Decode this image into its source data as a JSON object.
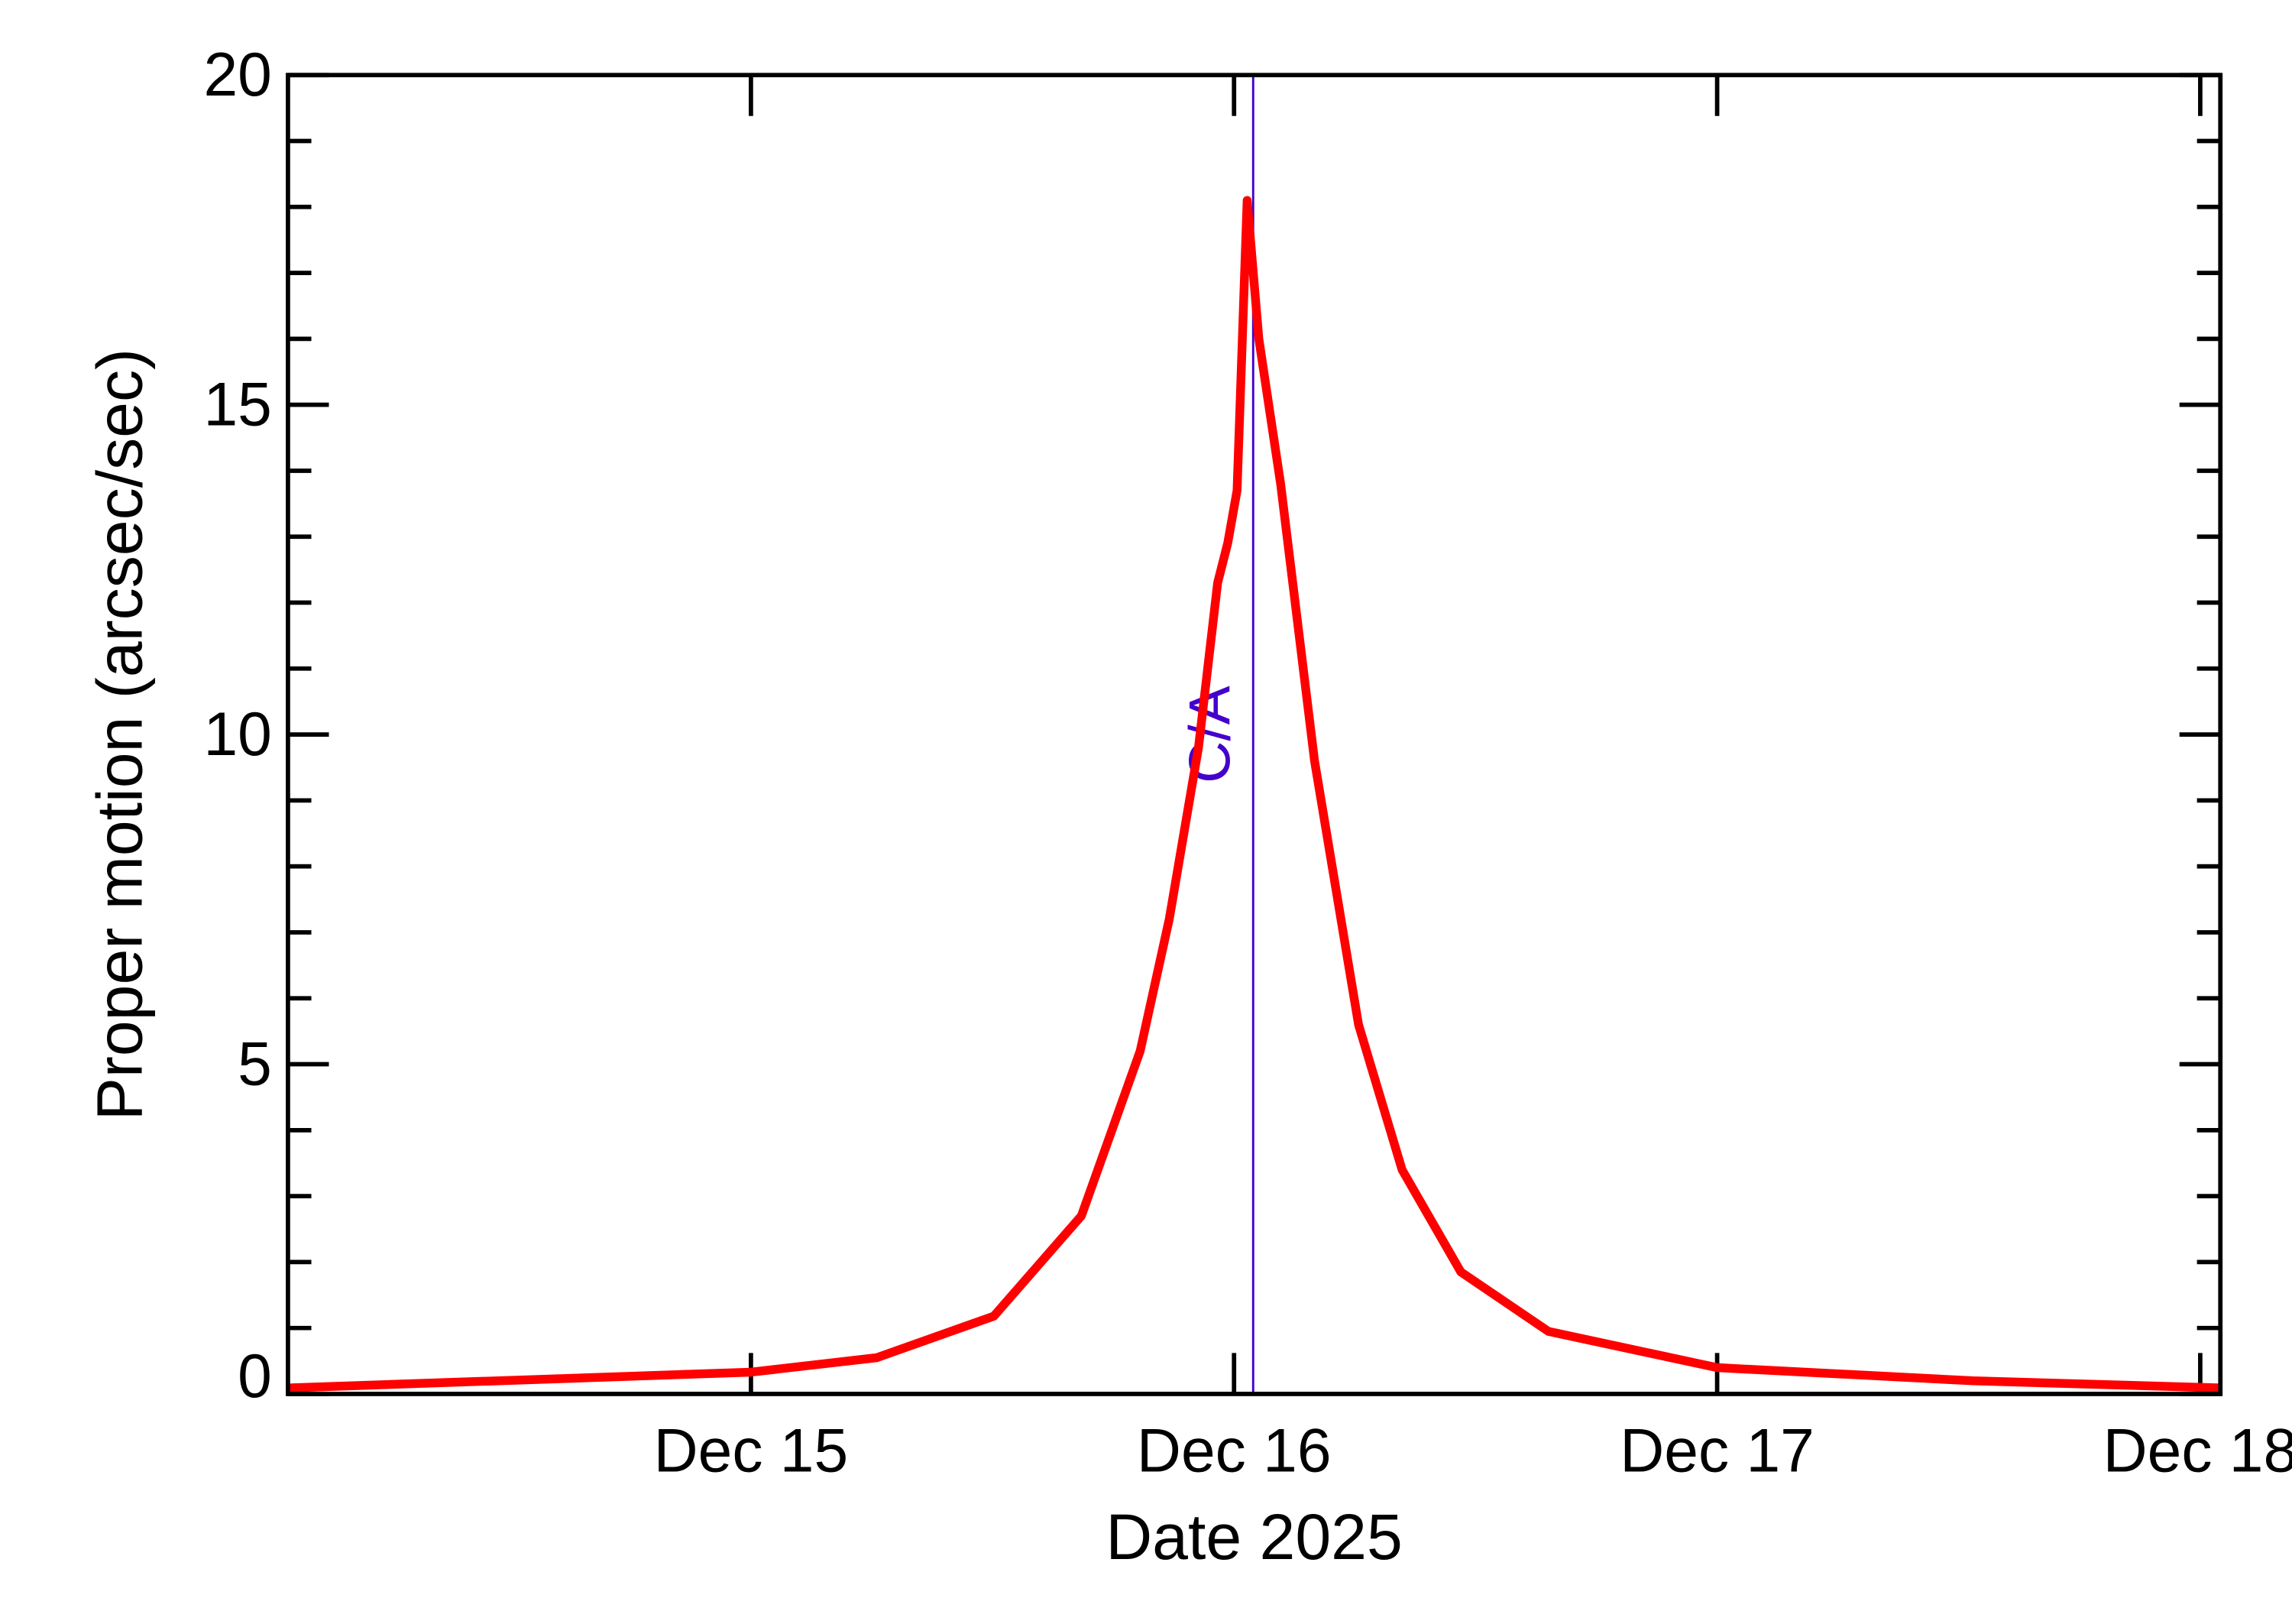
{
  "chart_data": {
    "type": "line",
    "title": "",
    "xlabel": "Date 2025",
    "ylabel": "Proper motion (arcsec/sec)",
    "xlim": [
      "2025-12-14T01:00",
      "2025-12-18T01:00"
    ],
    "ylim": [
      0,
      20
    ],
    "x_ticks": [
      {
        "label": "Dec 15",
        "value": "2025-12-15T00:00"
      },
      {
        "label": "Dec 16",
        "value": "2025-12-16T00:00"
      },
      {
        "label": "Dec 17",
        "value": "2025-12-17T00:00"
      },
      {
        "label": "Dec 18",
        "value": "2025-12-18T00:00"
      }
    ],
    "y_ticks": [
      0,
      5,
      10,
      15,
      20
    ],
    "y_minor_step": 1,
    "grid": false,
    "series": [
      {
        "color": "#ff0000",
        "points": [
          [
            "2025-12-14T01:00",
            0.09
          ],
          [
            "2025-12-15T00:00",
            0.33
          ],
          [
            "2025-12-15T06:15",
            0.55
          ],
          [
            "2025-12-15T12:04",
            1.18
          ],
          [
            "2025-12-15T16:25",
            2.7
          ],
          [
            "2025-12-15T19:20",
            5.2
          ],
          [
            "2025-12-15T20:47",
            7.2
          ],
          [
            "2025-12-15T22:14",
            9.8
          ],
          [
            "2025-12-15T23:11",
            12.3
          ],
          [
            "2025-12-15T23:41",
            12.9
          ],
          [
            "2025-12-16T00:09",
            13.7
          ],
          [
            "2025-12-16T00:39",
            18.1
          ],
          [
            "2025-12-16T01:14",
            16.0
          ],
          [
            "2025-12-16T02:19",
            13.8
          ],
          [
            "2025-12-16T04:00",
            9.6
          ],
          [
            "2025-12-16T06:11",
            5.6
          ],
          [
            "2025-12-16T08:21",
            3.4
          ],
          [
            "2025-12-16T11:16",
            1.85
          ],
          [
            "2025-12-16T15:37",
            0.95
          ],
          [
            "2025-12-17T00:00",
            0.4
          ],
          [
            "2025-12-17T12:43",
            0.2
          ],
          [
            "2025-12-18T01:00",
            0.09
          ]
        ]
      }
    ],
    "annotations": [
      {
        "type": "vline",
        "label": "C/A",
        "x": "2025-12-16T00:57",
        "color": "#4400cc"
      }
    ]
  }
}
